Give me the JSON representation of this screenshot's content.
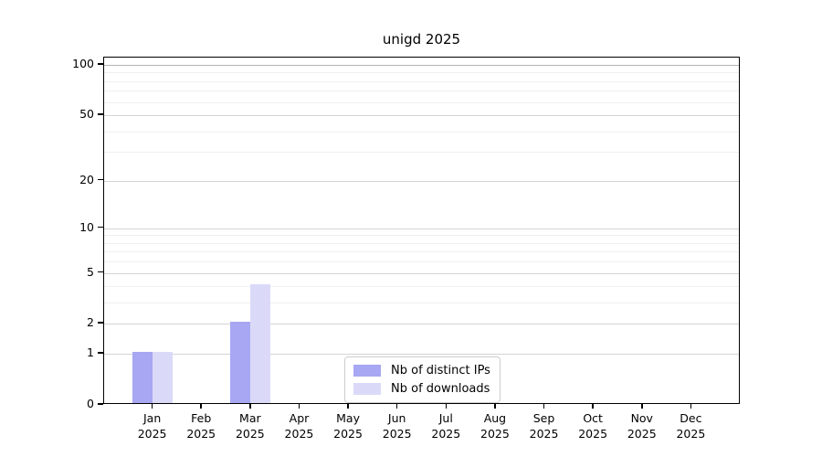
{
  "title": "unigd 2025",
  "chart_data": {
    "type": "bar",
    "title": "unigd 2025",
    "categories": [
      "Jan",
      "Feb",
      "Mar",
      "Apr",
      "May",
      "Jun",
      "Jul",
      "Aug",
      "Sep",
      "Oct",
      "Nov",
      "Dec"
    ],
    "year": "2025",
    "series": [
      {
        "name": "Nb of distinct IPs",
        "color": "#a7a7f3",
        "values": [
          1,
          0,
          2,
          0,
          0,
          0,
          0,
          0,
          0,
          0,
          0,
          0
        ]
      },
      {
        "name": "Nb of downloads",
        "color": "#dadaf8",
        "values": [
          1,
          0,
          4,
          0,
          0,
          0,
          0,
          0,
          0,
          0,
          0,
          0
        ]
      }
    ],
    "xlabel": "",
    "ylabel": "",
    "yscale": "log1p",
    "ylim": [
      0,
      100
    ],
    "yticks_labeled": [
      0,
      1,
      2,
      5,
      10,
      20,
      50,
      100
    ],
    "yticks_major": [
      1,
      2,
      5,
      10,
      20,
      50,
      100
    ],
    "yticks_minor": [
      3,
      4,
      6,
      7,
      8,
      9,
      30,
      40,
      60,
      70,
      80,
      90
    ],
    "grid": "on",
    "legend_position": "bottom-center"
  },
  "legend": {
    "items": [
      {
        "label": "Nb of distinct IPs",
        "color": "#a7a7f3"
      },
      {
        "label": "Nb of downloads",
        "color": "#dadaf8"
      }
    ]
  },
  "colors": {
    "background": "#ffffff",
    "axis": "#000000",
    "grid_major": "#d4d4d4",
    "grid_minor": "#f0f0f0",
    "grid_top": "#b3b3b3",
    "legend_border": "#cccccc",
    "series_distinct_ips": "#a7a7f3",
    "series_downloads": "#dadaf8"
  }
}
